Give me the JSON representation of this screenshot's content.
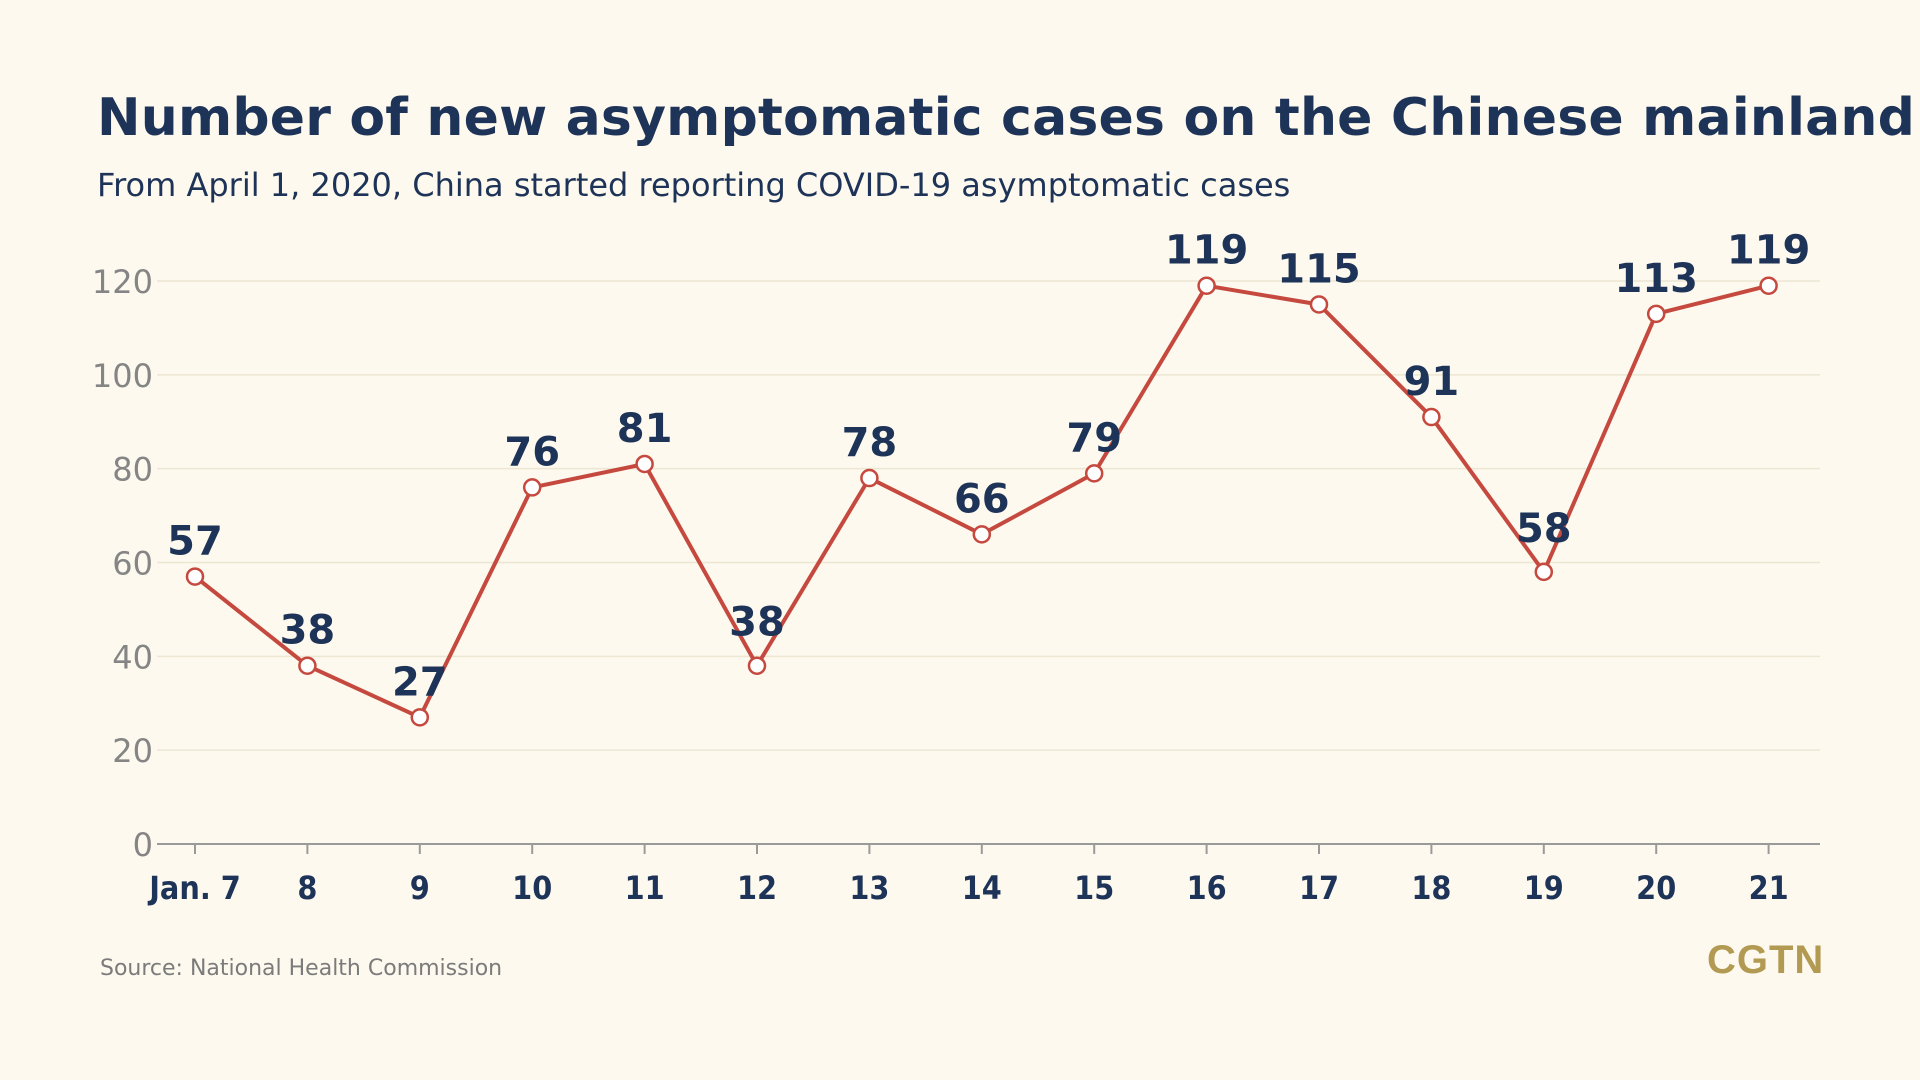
{
  "chart_data": {
    "type": "line",
    "title": "Number of new asymptomatic cases on the Chinese mainland",
    "subtitle": "From April 1, 2020, China started reporting COVID-19 asymptomatic cases",
    "categories": [
      "Jan. 7",
      "8",
      "9",
      "10",
      "11",
      "12",
      "13",
      "14",
      "15",
      "16",
      "17",
      "18",
      "19",
      "20",
      "21"
    ],
    "series": [
      {
        "values": [
          57,
          38,
          27,
          76,
          81,
          38,
          78,
          66,
          79,
          119,
          115,
          91,
          58,
          113,
          119
        ]
      }
    ],
    "data_labels": [
      "57",
      "38",
      "27",
      "76",
      "81",
      "38",
      "78",
      "66",
      "79",
      "119",
      "115",
      "91",
      "58",
      "113",
      "119"
    ],
    "ylim": [
      0,
      120
    ],
    "yticks": [
      0,
      20,
      40,
      60,
      80,
      100,
      120
    ],
    "grid": true,
    "line_color": "#c5493f",
    "source": "Source: National Health Commission",
    "logo": "CGTN"
  }
}
